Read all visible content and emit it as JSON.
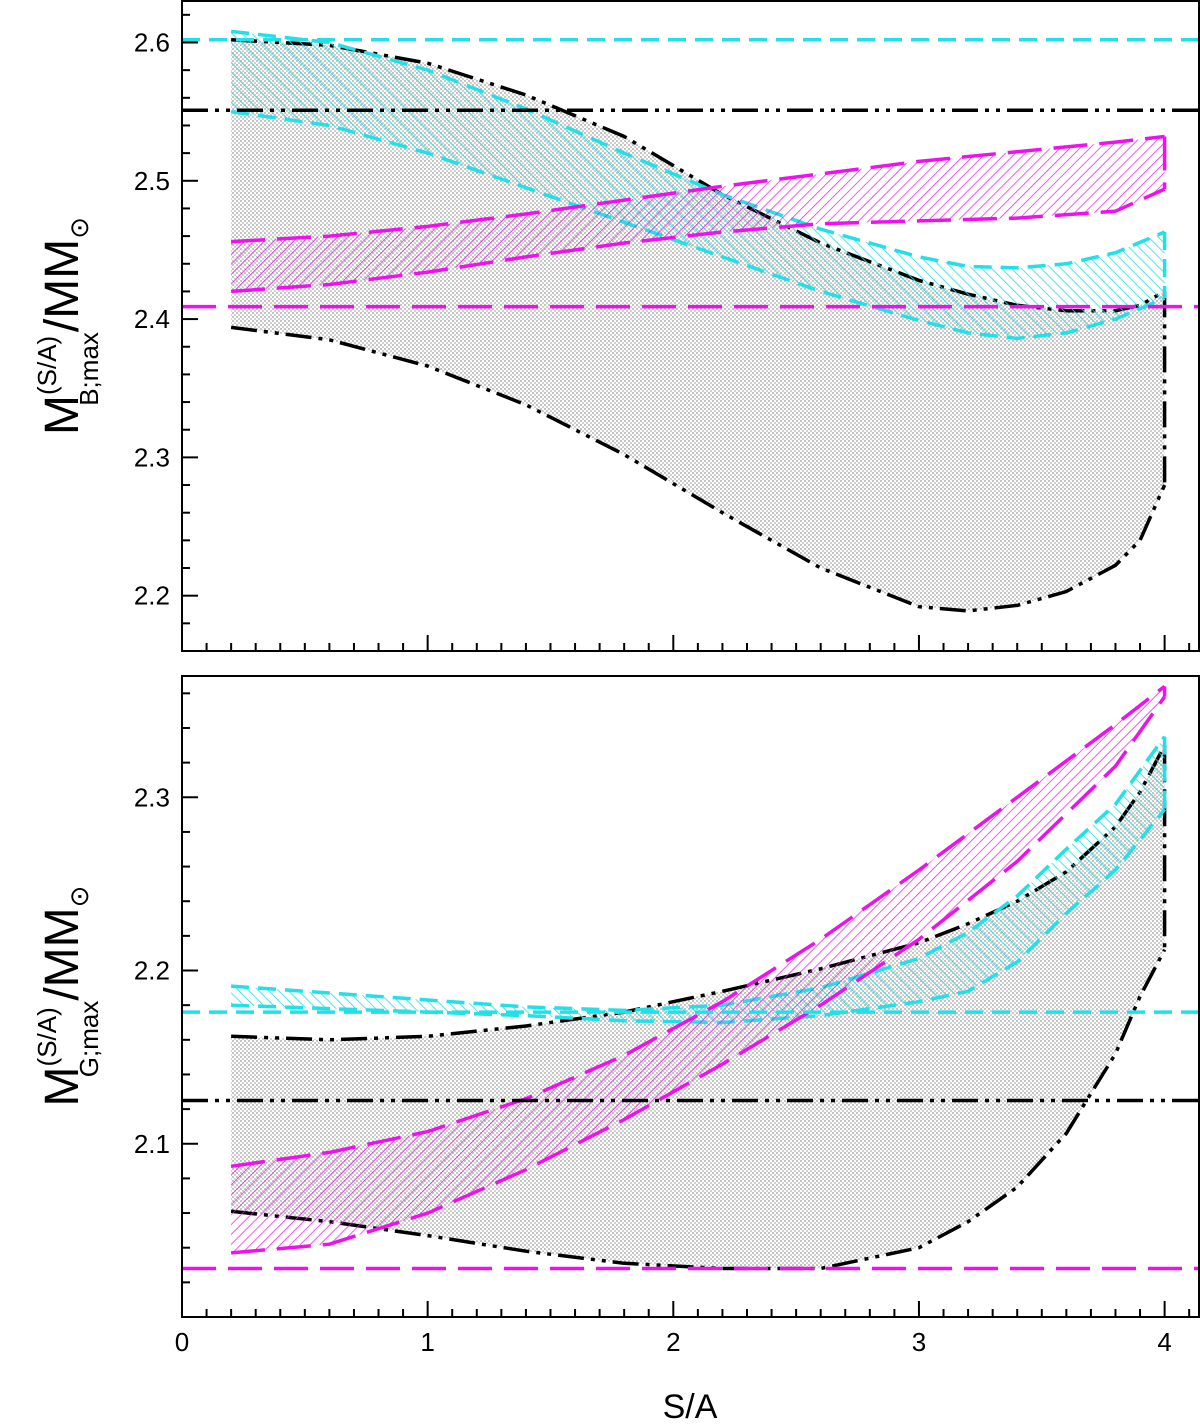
{
  "colors": {
    "black": "#000000",
    "cyan": "#22e0e8",
    "magenta": "#ee11ee",
    "gray_fill": "#bdbdbd"
  },
  "chart_data": [
    {
      "type": "area",
      "xlabel": "",
      "ylabel": {
        "main": "M",
        "superscript": "(S/A)",
        "subscript": "B;max",
        "suffix": "/M",
        "sun": "⊙"
      },
      "xlim": [
        0,
        4.14
      ],
      "ylim": [
        2.16,
        2.63
      ],
      "yticks": [
        2.2,
        2.3,
        2.4,
        2.5,
        2.6
      ],
      "ytick_labels": [
        "2.2",
        "2.3",
        "2.4",
        "2.5",
        "2.6"
      ],
      "xticks": [
        0,
        1,
        2,
        3,
        4
      ],
      "xtick_labels": [
        "",
        "",
        "",
        "",
        ""
      ],
      "grid": false,
      "hlines": [
        {
          "y": 2.602,
          "style": "cyan-dashed"
        },
        {
          "y": 2.551,
          "style": "black-dashdotdot"
        },
        {
          "y": 2.409,
          "style": "magenta-longdash"
        }
      ],
      "bands": [
        {
          "style": "black-dashdotdot",
          "x": [
            0.2,
            0.6,
            1.0,
            1.4,
            1.8,
            2.2,
            2.6,
            3.0,
            3.2,
            3.4,
            3.6,
            3.8,
            3.9,
            4.0
          ],
          "upper": [
            2.602,
            2.598,
            2.585,
            2.562,
            2.532,
            2.49,
            2.455,
            2.428,
            2.418,
            2.41,
            2.406,
            2.406,
            2.41,
            2.42
          ],
          "lower": [
            2.394,
            2.385,
            2.366,
            2.338,
            2.302,
            2.26,
            2.22,
            2.192,
            2.189,
            2.193,
            2.203,
            2.222,
            2.24,
            2.28
          ]
        },
        {
          "style": "cyan-dashed",
          "x": [
            0.2,
            0.6,
            1.0,
            1.4,
            1.8,
            2.2,
            2.6,
            3.0,
            3.2,
            3.4,
            3.6,
            3.8,
            4.0
          ],
          "upper": [
            2.608,
            2.6,
            2.58,
            2.552,
            2.52,
            2.49,
            2.465,
            2.445,
            2.438,
            2.437,
            2.44,
            2.448,
            2.463
          ],
          "lower": [
            2.55,
            2.54,
            2.52,
            2.495,
            2.47,
            2.445,
            2.42,
            2.399,
            2.39,
            2.386,
            2.39,
            2.4,
            2.415
          ]
        },
        {
          "style": "magenta-longdash",
          "x": [
            0.2,
            0.6,
            1.0,
            1.4,
            1.8,
            2.2,
            2.6,
            3.0,
            3.4,
            3.8,
            4.0
          ],
          "upper": [
            2.456,
            2.46,
            2.467,
            2.476,
            2.486,
            2.496,
            2.505,
            2.514,
            2.521,
            2.528,
            2.532
          ],
          "lower": [
            2.42,
            2.425,
            2.434,
            2.445,
            2.455,
            2.463,
            2.469,
            2.471,
            2.473,
            2.478,
            2.494
          ]
        }
      ]
    },
    {
      "type": "area",
      "xlabel": "S/A",
      "ylabel": {
        "main": "M",
        "superscript": "(S/A)",
        "subscript": "G;max",
        "suffix": "/M",
        "sun": "⊙"
      },
      "xlim": [
        0,
        4.14
      ],
      "ylim": [
        2.0,
        2.37
      ],
      "yticks": [
        2.1,
        2.2,
        2.3
      ],
      "ytick_labels": [
        "2.1",
        "2.2",
        "2.3"
      ],
      "xticks": [
        0,
        1,
        2,
        3,
        4
      ],
      "xtick_labels": [
        "0",
        "1",
        "2",
        "3",
        "4"
      ],
      "grid": false,
      "hlines": [
        {
          "y": 2.176,
          "style": "cyan-dashed"
        },
        {
          "y": 2.125,
          "style": "black-dashdotdot"
        },
        {
          "y": 2.028,
          "style": "magenta-longdash"
        }
      ],
      "bands": [
        {
          "style": "black-dashdotdot",
          "x": [
            0.2,
            0.6,
            1.0,
            1.4,
            1.8,
            2.2,
            2.6,
            3.0,
            3.2,
            3.4,
            3.6,
            3.8,
            3.9,
            4.0
          ],
          "upper": [
            2.162,
            2.16,
            2.162,
            2.168,
            2.176,
            2.188,
            2.201,
            2.216,
            2.227,
            2.24,
            2.257,
            2.283,
            2.303,
            2.33
          ],
          "lower": [
            2.061,
            2.055,
            2.047,
            2.038,
            2.031,
            2.028,
            2.028,
            2.04,
            2.055,
            2.075,
            2.106,
            2.152,
            2.185,
            2.212
          ]
        },
        {
          "style": "cyan-dashed",
          "x": [
            0.2,
            0.6,
            1.0,
            1.4,
            1.8,
            2.2,
            2.6,
            3.0,
            3.2,
            3.4,
            3.6,
            3.8,
            4.0
          ],
          "upper": [
            2.191,
            2.187,
            2.183,
            2.179,
            2.177,
            2.18,
            2.19,
            2.207,
            2.222,
            2.243,
            2.27,
            2.296,
            2.335
          ],
          "lower": [
            2.18,
            2.178,
            2.176,
            2.174,
            2.171,
            2.17,
            2.174,
            2.182,
            2.188,
            2.205,
            2.233,
            2.258,
            2.293
          ]
        },
        {
          "style": "magenta-longdash",
          "x": [
            0.2,
            0.6,
            1.0,
            1.4,
            1.8,
            2.2,
            2.6,
            3.0,
            3.4,
            3.8,
            4.0
          ],
          "upper": [
            2.087,
            2.095,
            2.107,
            2.126,
            2.151,
            2.182,
            2.218,
            2.258,
            2.3,
            2.342,
            2.364
          ],
          "lower": [
            2.037,
            2.042,
            2.06,
            2.085,
            2.114,
            2.146,
            2.18,
            2.218,
            2.263,
            2.318,
            2.358
          ]
        }
      ]
    }
  ]
}
